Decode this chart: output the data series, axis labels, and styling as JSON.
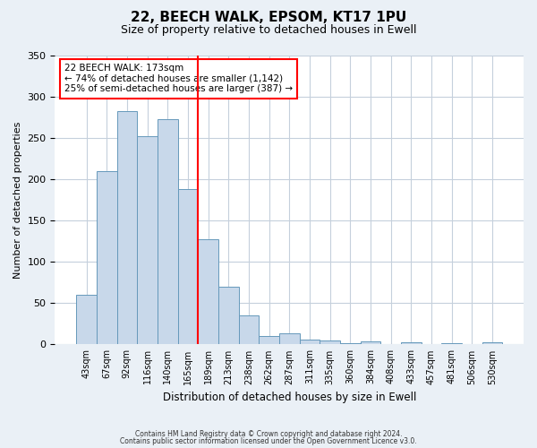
{
  "title": "22, BEECH WALK, EPSOM, KT17 1PU",
  "subtitle": "Size of property relative to detached houses in Ewell",
  "xlabel": "Distribution of detached houses by size in Ewell",
  "ylabel": "Number of detached properties",
  "bar_labels": [
    "43sqm",
    "67sqm",
    "92sqm",
    "116sqm",
    "140sqm",
    "165sqm",
    "189sqm",
    "213sqm",
    "238sqm",
    "262sqm",
    "287sqm",
    "311sqm",
    "335sqm",
    "360sqm",
    "384sqm",
    "408sqm",
    "433sqm",
    "457sqm",
    "481sqm",
    "506sqm",
    "530sqm"
  ],
  "bar_values": [
    60,
    210,
    282,
    252,
    272,
    188,
    127,
    70,
    35,
    10,
    13,
    6,
    5,
    2,
    4,
    0,
    3,
    0,
    2,
    0,
    3
  ],
  "bar_color": "#c8d8ea",
  "bar_edge_color": "#6699bb",
  "ylim": [
    0,
    350
  ],
  "yticks": [
    0,
    50,
    100,
    150,
    200,
    250,
    300,
    350
  ],
  "property_line_index": 5,
  "annotation_title": "22 BEECH WALK: 173sqm",
  "annotation_line1": "← 74% of detached houses are smaller (1,142)",
  "annotation_line2": "25% of semi-detached houses are larger (387) →",
  "footer_line1": "Contains HM Land Registry data © Crown copyright and database right 2024.",
  "footer_line2": "Contains public sector information licensed under the Open Government Licence v3.0.",
  "bg_color": "#eaf0f6",
  "plot_bg_color": "#ffffff",
  "grid_color": "#c5d0dc"
}
